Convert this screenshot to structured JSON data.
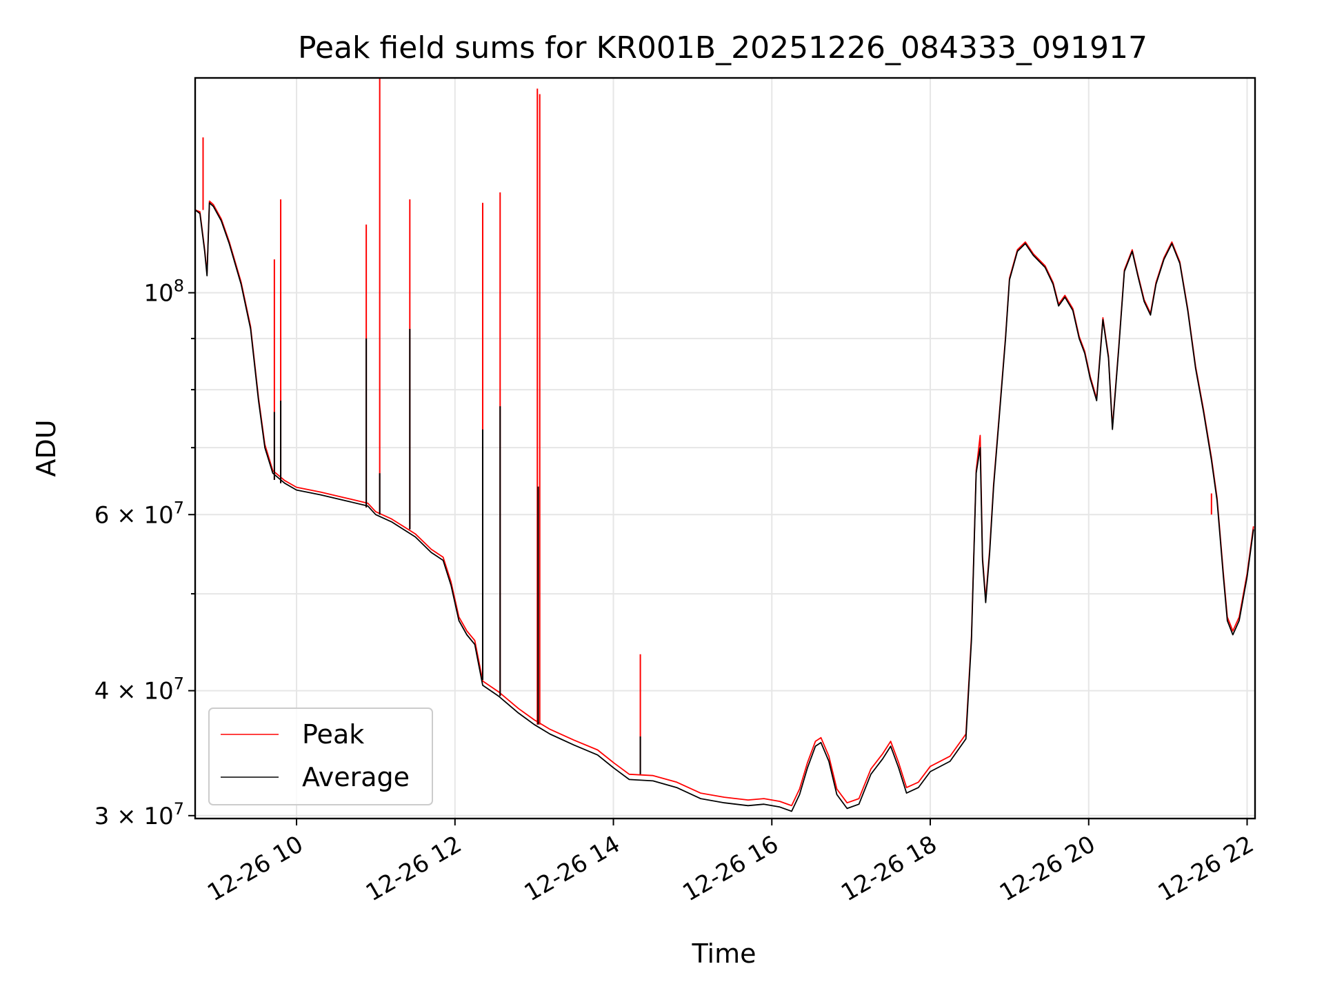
{
  "chart_data": {
    "type": "line",
    "title": "Peak field sums for KR001B_20251226_084333_091917",
    "xlabel": "Time",
    "ylabel": "ADU",
    "yscale": "log",
    "xlim_hours": [
      8.72,
      22.1
    ],
    "ylim": [
      29800000,
      164000000
    ],
    "x_ticks": [
      {
        "value": 10,
        "label": "12-26 10"
      },
      {
        "value": 12,
        "label": "12-26 12"
      },
      {
        "value": 14,
        "label": "12-26 14"
      },
      {
        "value": 16,
        "label": "12-26 16"
      },
      {
        "value": 18,
        "label": "12-26 18"
      },
      {
        "value": 20,
        "label": "12-26 20"
      },
      {
        "value": 22,
        "label": "12-26 22"
      }
    ],
    "y_major_ticks": [
      {
        "value": 30000000,
        "label_base": "3 × 10",
        "label_exp": "7"
      },
      {
        "value": 40000000,
        "label_base": "4 × 10",
        "label_exp": "7"
      },
      {
        "value": 60000000,
        "label_base": "6 × 10",
        "label_exp": "7"
      },
      {
        "value": 100000000,
        "label_base": "10",
        "label_exp": "8"
      }
    ],
    "y_minor_ticks": [
      50000000,
      70000000,
      80000000,
      90000000
    ],
    "legend": {
      "position": "lower-left",
      "entries": [
        "Peak",
        "Average"
      ]
    },
    "series": [
      {
        "name": "Average",
        "color": "#000000",
        "points": [
          [
            8.72,
            121000000
          ],
          [
            8.78,
            120000000
          ],
          [
            8.84,
            110000000
          ],
          [
            8.87,
            104000000
          ],
          [
            8.9,
            123000000
          ],
          [
            8.95,
            122000000
          ],
          [
            9.05,
            118000000
          ],
          [
            9.15,
            112000000
          ],
          [
            9.3,
            102000000
          ],
          [
            9.42,
            92000000
          ],
          [
            9.52,
            78000000
          ],
          [
            9.6,
            70000000
          ],
          [
            9.7,
            66000000
          ],
          [
            9.85,
            64500000
          ],
          [
            10.0,
            63500000
          ],
          [
            10.3,
            62800000
          ],
          [
            10.6,
            62000000
          ],
          [
            10.9,
            61200000
          ],
          [
            11.0,
            60000000
          ],
          [
            11.2,
            59000000
          ],
          [
            11.5,
            57000000
          ],
          [
            11.7,
            55000000
          ],
          [
            11.85,
            54000000
          ],
          [
            11.95,
            51000000
          ],
          [
            12.05,
            47000000
          ],
          [
            12.15,
            45500000
          ],
          [
            12.25,
            44500000
          ],
          [
            12.35,
            40500000
          ],
          [
            12.55,
            39500000
          ],
          [
            12.8,
            38000000
          ],
          [
            13.0,
            37000000
          ],
          [
            13.2,
            36200000
          ],
          [
            13.5,
            35300000
          ],
          [
            13.8,
            34500000
          ],
          [
            14.0,
            33500000
          ],
          [
            14.2,
            32600000
          ],
          [
            14.5,
            32500000
          ],
          [
            14.8,
            32000000
          ],
          [
            15.1,
            31200000
          ],
          [
            15.4,
            30900000
          ],
          [
            15.7,
            30700000
          ],
          [
            15.9,
            30800000
          ],
          [
            16.1,
            30600000
          ],
          [
            16.25,
            30300000
          ],
          [
            16.35,
            31500000
          ],
          [
            16.45,
            33500000
          ],
          [
            16.55,
            35200000
          ],
          [
            16.62,
            35500000
          ],
          [
            16.72,
            34000000
          ],
          [
            16.82,
            31500000
          ],
          [
            16.95,
            30500000
          ],
          [
            17.1,
            30800000
          ],
          [
            17.25,
            33000000
          ],
          [
            17.4,
            34200000
          ],
          [
            17.5,
            35200000
          ],
          [
            17.6,
            33500000
          ],
          [
            17.7,
            31600000
          ],
          [
            17.85,
            32000000
          ],
          [
            18.0,
            33200000
          ],
          [
            18.25,
            34000000
          ],
          [
            18.45,
            35800000
          ],
          [
            18.52,
            45000000
          ],
          [
            18.58,
            66000000
          ],
          [
            18.63,
            70000000
          ],
          [
            18.66,
            54000000
          ],
          [
            18.7,
            49000000
          ],
          [
            18.75,
            55000000
          ],
          [
            18.8,
            64000000
          ],
          [
            18.87,
            75000000
          ],
          [
            18.95,
            90000000
          ],
          [
            19.0,
            103000000
          ],
          [
            19.1,
            110000000
          ],
          [
            19.2,
            112000000
          ],
          [
            19.3,
            109000000
          ],
          [
            19.45,
            106000000
          ],
          [
            19.55,
            102000000
          ],
          [
            19.62,
            97000000
          ],
          [
            19.7,
            99000000
          ],
          [
            19.8,
            96000000
          ],
          [
            19.88,
            90000000
          ],
          [
            19.95,
            87000000
          ],
          [
            20.02,
            82000000
          ],
          [
            20.1,
            78000000
          ],
          [
            20.18,
            94000000
          ],
          [
            20.25,
            86000000
          ],
          [
            20.3,
            73000000
          ],
          [
            20.38,
            88000000
          ],
          [
            20.45,
            105000000
          ],
          [
            20.55,
            110000000
          ],
          [
            20.62,
            104000000
          ],
          [
            20.7,
            98000000
          ],
          [
            20.78,
            95000000
          ],
          [
            20.85,
            102000000
          ],
          [
            20.95,
            108000000
          ],
          [
            21.05,
            112000000
          ],
          [
            21.15,
            107000000
          ],
          [
            21.25,
            96000000
          ],
          [
            21.35,
            84000000
          ],
          [
            21.45,
            76000000
          ],
          [
            21.55,
            68000000
          ],
          [
            21.62,
            62000000
          ],
          [
            21.7,
            52000000
          ],
          [
            21.75,
            47000000
          ],
          [
            21.82,
            45500000
          ],
          [
            21.9,
            47000000
          ],
          [
            22.0,
            52000000
          ],
          [
            22.08,
            58000000
          ]
        ]
      },
      {
        "name": "Peak",
        "color": "#ff0000",
        "points": [
          [
            8.72,
            121000000
          ],
          [
            8.78,
            120500000
          ],
          [
            8.84,
            110500000
          ],
          [
            8.87,
            104500000
          ],
          [
            8.9,
            123500000
          ],
          [
            8.95,
            122500000
          ],
          [
            9.05,
            118500000
          ],
          [
            9.15,
            112500000
          ],
          [
            9.3,
            102500000
          ],
          [
            9.42,
            92500000
          ],
          [
            9.52,
            78500000
          ],
          [
            9.6,
            70500000
          ],
          [
            9.7,
            66400000
          ],
          [
            9.85,
            64900000
          ],
          [
            10.0,
            63900000
          ],
          [
            10.3,
            63200000
          ],
          [
            10.6,
            62400000
          ],
          [
            10.9,
            61600000
          ],
          [
            11.0,
            60400000
          ],
          [
            11.2,
            59400000
          ],
          [
            11.5,
            57400000
          ],
          [
            11.7,
            55400000
          ],
          [
            11.85,
            54400000
          ],
          [
            11.95,
            51400000
          ],
          [
            12.05,
            47400000
          ],
          [
            12.15,
            45900000
          ],
          [
            12.25,
            44900000
          ],
          [
            12.35,
            40900000
          ],
          [
            12.55,
            39900000
          ],
          [
            12.8,
            38400000
          ],
          [
            13.0,
            37400000
          ],
          [
            13.2,
            36600000
          ],
          [
            13.5,
            35700000
          ],
          [
            13.8,
            34900000
          ],
          [
            14.0,
            33900000
          ],
          [
            14.2,
            33000000
          ],
          [
            14.5,
            32900000
          ],
          [
            14.8,
            32400000
          ],
          [
            15.1,
            31600000
          ],
          [
            15.4,
            31300000
          ],
          [
            15.7,
            31100000
          ],
          [
            15.9,
            31200000
          ],
          [
            16.1,
            31000000
          ],
          [
            16.25,
            30700000
          ],
          [
            16.35,
            31900000
          ],
          [
            16.45,
            33900000
          ],
          [
            16.55,
            35600000
          ],
          [
            16.62,
            35900000
          ],
          [
            16.72,
            34400000
          ],
          [
            16.82,
            31900000
          ],
          [
            16.95,
            30900000
          ],
          [
            17.1,
            31200000
          ],
          [
            17.25,
            33400000
          ],
          [
            17.4,
            34600000
          ],
          [
            17.5,
            35600000
          ],
          [
            17.6,
            33900000
          ],
          [
            17.7,
            32000000
          ],
          [
            17.85,
            32400000
          ],
          [
            18.0,
            33600000
          ],
          [
            18.25,
            34400000
          ],
          [
            18.45,
            36200000
          ],
          [
            18.52,
            45400000
          ],
          [
            18.58,
            66400000
          ],
          [
            18.63,
            72000000
          ],
          [
            18.66,
            54400000
          ],
          [
            18.7,
            49400000
          ],
          [
            18.75,
            55400000
          ],
          [
            18.8,
            64400000
          ],
          [
            18.87,
            75400000
          ],
          [
            18.95,
            90400000
          ],
          [
            19.0,
            103400000
          ],
          [
            19.1,
            110400000
          ],
          [
            19.2,
            112400000
          ],
          [
            19.3,
            109400000
          ],
          [
            19.45,
            106400000
          ],
          [
            19.55,
            102400000
          ],
          [
            19.62,
            97400000
          ],
          [
            19.7,
            99400000
          ],
          [
            19.8,
            96400000
          ],
          [
            19.88,
            90400000
          ],
          [
            19.95,
            87400000
          ],
          [
            20.02,
            82400000
          ],
          [
            20.1,
            78400000
          ],
          [
            20.18,
            94400000
          ],
          [
            20.25,
            86400000
          ],
          [
            20.3,
            73400000
          ],
          [
            20.38,
            88400000
          ],
          [
            20.45,
            105400000
          ],
          [
            20.55,
            110400000
          ],
          [
            20.62,
            104400000
          ],
          [
            20.7,
            98400000
          ],
          [
            20.78,
            95400000
          ],
          [
            20.85,
            102400000
          ],
          [
            20.95,
            108400000
          ],
          [
            21.05,
            112400000
          ],
          [
            21.15,
            107400000
          ],
          [
            21.25,
            96400000
          ],
          [
            21.35,
            84400000
          ],
          [
            21.45,
            76400000
          ],
          [
            21.55,
            68400000
          ],
          [
            21.62,
            62400000
          ],
          [
            21.7,
            52400000
          ],
          [
            21.75,
            47400000
          ],
          [
            21.82,
            45900000
          ],
          [
            21.9,
            47400000
          ],
          [
            22.0,
            52400000
          ],
          [
            22.08,
            58400000
          ]
        ]
      }
    ],
    "spikes": [
      {
        "series": "Peak",
        "x": 8.82,
        "base": 121000000,
        "top": 143000000
      },
      {
        "series": "Peak",
        "x": 9.72,
        "base": 65000000,
        "top": 108000000
      },
      {
        "series": "Average",
        "x": 9.72,
        "base": 65000000,
        "top": 76000000
      },
      {
        "series": "Peak",
        "x": 9.8,
        "base": 64500000,
        "top": 124000000
      },
      {
        "series": "Average",
        "x": 9.8,
        "base": 64500000,
        "top": 78000000
      },
      {
        "series": "Peak",
        "x": 10.88,
        "base": 61000000,
        "top": 117000000
      },
      {
        "series": "Average",
        "x": 10.88,
        "base": 61000000,
        "top": 90000000
      },
      {
        "series": "Peak",
        "x": 11.05,
        "base": 60000000,
        "top": 164000000
      },
      {
        "series": "Average",
        "x": 11.05,
        "base": 60000000,
        "top": 66000000
      },
      {
        "series": "Peak",
        "x": 11.43,
        "base": 58000000,
        "top": 124000000
      },
      {
        "series": "Average",
        "x": 11.43,
        "base": 58000000,
        "top": 92000000
      },
      {
        "series": "Peak",
        "x": 12.35,
        "base": 41000000,
        "top": 123000000
      },
      {
        "series": "Average",
        "x": 12.35,
        "base": 41000000,
        "top": 73000000
      },
      {
        "series": "Peak",
        "x": 12.57,
        "base": 39500000,
        "top": 126000000
      },
      {
        "series": "Average",
        "x": 12.57,
        "base": 39500000,
        "top": 77000000
      },
      {
        "series": "Peak",
        "x": 13.04,
        "base": 37000000,
        "top": 160000000
      },
      {
        "series": "Peak",
        "x": 13.07,
        "base": 37000000,
        "top": 158000000
      },
      {
        "series": "Average",
        "x": 13.05,
        "base": 37000000,
        "top": 64000000
      },
      {
        "series": "Peak",
        "x": 14.34,
        "base": 33000000,
        "top": 43500000
      },
      {
        "series": "Average",
        "x": 14.34,
        "base": 33000000,
        "top": 36000000
      },
      {
        "series": "Peak",
        "x": 21.55,
        "base": 60000000,
        "top": 63000000
      }
    ]
  }
}
